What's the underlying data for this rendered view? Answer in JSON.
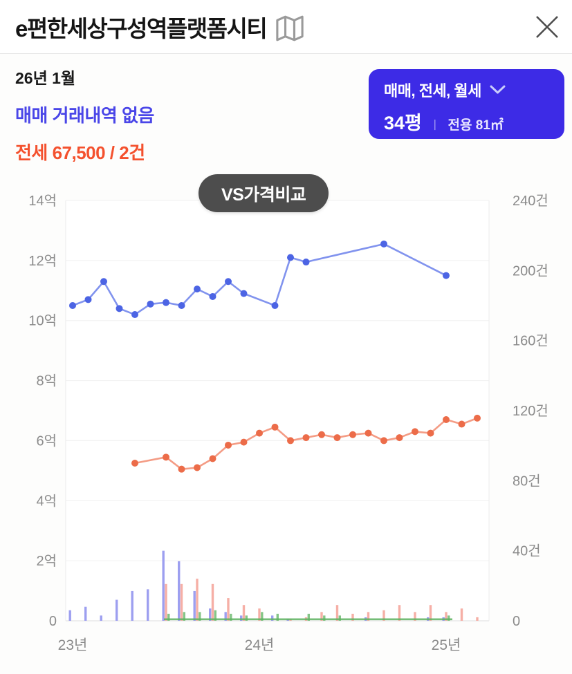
{
  "header": {
    "title": "e편한세상구성역플랫폼시티"
  },
  "summary": {
    "date": "26년 1월",
    "sale_status": "매매 거래내역 없음",
    "jeonse_status": "전세 67,500 / 2건"
  },
  "filter_button": {
    "trade_types": "매매, 전세, 월세",
    "pyeong": "34평",
    "divider": "ㅣ",
    "area": "전용 81㎡"
  },
  "compare_badge": {
    "label": "VS가격비교"
  },
  "colors": {
    "accent_blue": "#3d2be6",
    "sale_text": "#4a46e8",
    "jeonse_text": "#f4512e",
    "badge_bg": "#4d4d4d",
    "sale_line": "#8193ee",
    "sale_marker": "#4c64e4",
    "jeonse_line": "#f49c85",
    "jeonse_marker": "#ec6c49",
    "sale_bar": "#989aef",
    "jeonse_bar": "#f6aba1",
    "wolse_bar": "#7ec281",
    "wolse_line": "#5cb260"
  },
  "chart_data": {
    "type": "line",
    "left_axis": {
      "unit": "억",
      "range": [
        0,
        14
      ],
      "ticks": [
        "14억",
        "12억",
        "10억",
        "8억",
        "6억",
        "4억",
        "2억",
        "0"
      ]
    },
    "right_axis": {
      "unit": "건",
      "range": [
        0,
        240
      ],
      "ticks": [
        "240건",
        "200건",
        "160건",
        "120건",
        "80건",
        "40건",
        "0"
      ]
    },
    "x_axis": {
      "range": [
        "23-01",
        "25-04"
      ],
      "ticks": [
        {
          "month": "23-01",
          "label": "23년"
        },
        {
          "month": "24-01",
          "label": "24년"
        },
        {
          "month": "25-01",
          "label": "25년"
        }
      ]
    },
    "series": [
      {
        "key": "sale_price_line",
        "kind": "line",
        "axis": "price",
        "color": "#8193ee",
        "marker": "#4c64e4",
        "x": [
          "23-01",
          "23-02",
          "23-03",
          "23-04",
          "23-05",
          "23-06",
          "23-07",
          "23-08",
          "23-09",
          "23-10",
          "23-11",
          "23-12",
          "24-02",
          "24-03",
          "24-04",
          "24-09",
          "25-01"
        ],
        "y": [
          10.5,
          10.7,
          11.3,
          10.4,
          10.2,
          10.55,
          10.6,
          10.5,
          11.05,
          10.8,
          11.3,
          10.9,
          10.5,
          12.1,
          11.95,
          12.55,
          11.5
        ]
      },
      {
        "key": "jeonse_price_line",
        "kind": "line",
        "axis": "price",
        "color": "#f49c85",
        "marker": "#ec6c49",
        "x": [
          "23-05",
          "23-07",
          "23-08",
          "23-09",
          "23-10",
          "23-11",
          "23-12",
          "24-01",
          "24-02",
          "24-03",
          "24-04",
          "24-05",
          "24-06",
          "24-07",
          "24-08",
          "24-09",
          "24-10",
          "24-11",
          "24-12",
          "25-01",
          "25-02",
          "25-03"
        ],
        "y": [
          5.25,
          5.45,
          5.05,
          5.1,
          5.4,
          5.85,
          5.95,
          6.25,
          6.45,
          6.0,
          6.1,
          6.2,
          6.1,
          6.2,
          6.25,
          6.0,
          6.1,
          6.3,
          6.25,
          6.7,
          6.55,
          6.75
        ]
      },
      {
        "key": "wolse_price_line",
        "kind": "flatline",
        "axis": "price",
        "color": "#5cb260",
        "from": "23-07",
        "to": "25-01",
        "value": 0.05
      },
      {
        "key": "sale_count_bars",
        "kind": "bar",
        "axis": "count",
        "color": "#989aef",
        "offset": -3.8,
        "x": [
          "23-01",
          "23-02",
          "23-03",
          "23-04",
          "23-05",
          "23-06",
          "23-07",
          "23-08",
          "23-09",
          "23-10",
          "23-11",
          "23-12",
          "24-02",
          "24-03",
          "24-08",
          "24-12",
          "25-01"
        ],
        "y": [
          6,
          8,
          3,
          12,
          17,
          18,
          40,
          34,
          17,
          7,
          5,
          3,
          3,
          1,
          2,
          2,
          2
        ]
      },
      {
        "key": "jeonse_count_bars",
        "kind": "bar",
        "axis": "count",
        "color": "#f6aba1",
        "offset": 0,
        "x": [
          "23-07",
          "23-08",
          "23-09",
          "23-10",
          "23-11",
          "23-12",
          "24-01",
          "24-03",
          "24-04",
          "24-05",
          "24-06",
          "24-07",
          "24-08",
          "24-09",
          "24-10",
          "24-11",
          "24-12",
          "25-01",
          "25-02",
          "25-03"
        ],
        "y": [
          21,
          21,
          24,
          21,
          13,
          9,
          7,
          1,
          2,
          5,
          9,
          4,
          5,
          6,
          9,
          5,
          9,
          5,
          7,
          2
        ]
      },
      {
        "key": "wolse_count_bars",
        "kind": "bar",
        "axis": "count",
        "color": "#7ec281",
        "offset": 3.8,
        "x": [
          "23-07",
          "23-08",
          "23-09",
          "23-10",
          "23-11",
          "23-12",
          "24-01",
          "24-02",
          "24-04",
          "24-05",
          "24-06",
          "25-01"
        ],
        "y": [
          4,
          5,
          5,
          6,
          4,
          3,
          5,
          4,
          4,
          3,
          3,
          3
        ]
      }
    ]
  }
}
